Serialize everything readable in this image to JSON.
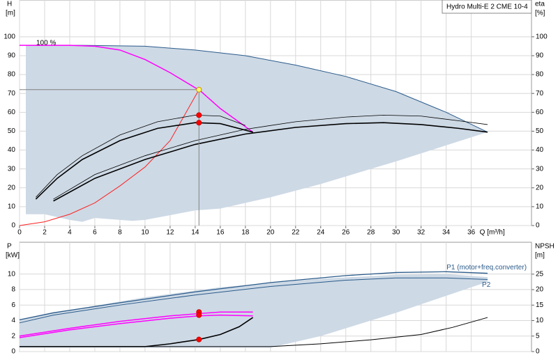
{
  "chart_data": [
    {
      "type": "line",
      "ylabel": "H",
      "yunit": "[m]",
      "y2label": "eta",
      "y2unit": "[%]",
      "xlabel": "Q [m³/h]",
      "annotations": [
        "100 %",
        "Hydro Multi-E 2 CME 10-4"
      ],
      "xlim": [
        0,
        40.8
      ],
      "xticks": [
        0,
        2,
        4,
        6,
        8,
        10,
        12,
        14,
        16,
        18,
        20,
        22,
        24,
        26,
        28,
        30,
        32,
        34,
        36
      ],
      "ylim": [
        0,
        119.5
      ],
      "yticks": [
        0,
        10,
        20,
        30,
        40,
        50,
        60,
        70,
        80,
        90,
        100
      ],
      "y2lim": [
        0,
        119.5
      ],
      "y2ticks": [
        0,
        10,
        20,
        30,
        40,
        50,
        60,
        70,
        80,
        90,
        100
      ],
      "grid": true,
      "series": [
        {
          "kind": "area",
          "color": "#cdd9e5",
          "x": [
            0.5,
            5,
            10,
            14,
            18,
            22,
            26,
            30,
            34,
            37.3,
            30,
            24,
            20,
            16,
            14,
            10,
            9,
            6,
            5,
            4,
            2,
            0.5
          ],
          "values": [
            95.5,
            95.5,
            95,
            93,
            90,
            85,
            79,
            71,
            60,
            49.5,
            34,
            22,
            15,
            9,
            8,
            3,
            2.5,
            4,
            2,
            3,
            6,
            6
          ]
        },
        {
          "kind": "line",
          "color": "#2a5a8a",
          "width": 1,
          "x": [
            0.5,
            5,
            10,
            14,
            18,
            22,
            26,
            30,
            34,
            37.3
          ],
          "values": [
            95.5,
            95.5,
            95,
            93,
            90,
            85,
            79,
            71,
            60,
            49.5
          ]
        },
        {
          "kind": "line",
          "color": "#ff00ff",
          "width": 1.5,
          "x": [
            0,
            4,
            6,
            8,
            10,
            12,
            14,
            14.3,
            16,
            18.6
          ],
          "values": [
            95.5,
            95.5,
            95,
            93,
            88,
            81,
            73,
            72,
            62,
            49.5
          ]
        },
        {
          "kind": "line",
          "color": "#ff2020",
          "width": 1,
          "x": [
            0,
            2,
            4,
            6,
            8,
            10,
            12,
            14.3
          ],
          "values": [
            0,
            2,
            6,
            12,
            21,
            31,
            45,
            72
          ]
        },
        {
          "kind": "line",
          "color": "#000000",
          "width": 0.8,
          "x": [
            1.3,
            3,
            5,
            8,
            11,
            14,
            16,
            18
          ],
          "values": [
            15,
            27,
            37,
            48,
            55,
            58.5,
            58,
            53
          ]
        },
        {
          "kind": "line",
          "color": "#000000",
          "width": 1.6,
          "x": [
            1.3,
            3,
            5,
            8,
            11,
            14,
            16,
            18.6
          ],
          "values": [
            14,
            25,
            35,
            45,
            51.5,
            54.5,
            54,
            49.5
          ]
        },
        {
          "kind": "line",
          "color": "#000000",
          "width": 0.8,
          "x": [
            2.7,
            6,
            10,
            14,
            18,
            22,
            26,
            29,
            32,
            35,
            37.3
          ],
          "values": [
            14,
            27,
            37,
            45,
            51,
            55,
            57.5,
            58.5,
            58,
            55.5,
            53.5
          ]
        },
        {
          "kind": "line",
          "color": "#000000",
          "width": 1.6,
          "x": [
            2.7,
            6,
            10,
            14,
            18,
            22,
            26,
            29,
            32,
            35,
            37.3
          ],
          "values": [
            13,
            25,
            35,
            43,
            48.5,
            52,
            54,
            54.5,
            53.5,
            51.5,
            49.5
          ]
        },
        {
          "kind": "line",
          "color": "#808080",
          "width": 1,
          "x": [
            0,
            14.3
          ],
          "values": [
            72,
            72
          ]
        },
        {
          "kind": "line",
          "color": "#808080",
          "width": 1,
          "x": [
            14.3,
            14.3
          ],
          "values": [
            72,
            0
          ]
        },
        {
          "kind": "point",
          "color": "#ffff66",
          "x": [
            14.3
          ],
          "values": [
            72
          ]
        },
        {
          "kind": "point",
          "color": "#ff0000",
          "x": [
            14.3,
            14.3
          ],
          "values": [
            58.5,
            54.5
          ]
        }
      ]
    },
    {
      "type": "line",
      "ylabel": "P",
      "yunit": "[kW]",
      "y2label": "NPSH",
      "y2unit": "[m]",
      "xlim": [
        0,
        40.8
      ],
      "ylim": [
        0,
        14.1
      ],
      "yticks": [
        0,
        2,
        4,
        6,
        8,
        10
      ],
      "y2lim": [
        0,
        35.3
      ],
      "y2ticks": [
        0,
        5,
        10,
        15,
        20,
        25
      ],
      "grid": true,
      "series": [
        {
          "kind": "area",
          "color": "#cdd9e5",
          "x": [
            0,
            2.7,
            10,
            16,
            24,
            30,
            34,
            37.3,
            37.3,
            30,
            24,
            20,
            5,
            0
          ],
          "values": [
            4.1,
            5,
            7,
            8.3,
            9.4,
            9.9,
            10,
            9.6,
            9,
            5,
            2,
            0.5,
            0.5,
            0.5
          ]
        },
        {
          "kind": "line",
          "name": "P1 (motor+freq.converter)",
          "color": "#2a5a8a",
          "width": 1.3,
          "x": [
            0,
            2.7,
            8,
            14,
            20,
            26,
            30,
            34,
            37.3
          ],
          "values": [
            4.1,
            5,
            6.3,
            7.7,
            8.9,
            9.8,
            10.2,
            10.3,
            10.1
          ]
        },
        {
          "kind": "line",
          "name": "P2",
          "color": "#2a5a8a",
          "width": 1,
          "x": [
            0,
            2.7,
            8,
            14,
            20,
            26,
            30,
            34,
            37.3
          ],
          "values": [
            3.7,
            4.7,
            6,
            7.3,
            8.4,
            9.2,
            9.5,
            9.5,
            9.3
          ]
        },
        {
          "kind": "line",
          "color": "#ff00ff",
          "width": 1.5,
          "x": [
            0,
            4,
            8,
            12,
            14.3,
            16,
            18.6
          ],
          "values": [
            2,
            3,
            3.9,
            4.6,
            4.9,
            5.1,
            5.1
          ]
        },
        {
          "kind": "line",
          "color": "#ff00ff",
          "width": 1.5,
          "x": [
            0,
            4,
            8,
            12,
            14.3,
            16,
            18.6
          ],
          "values": [
            1.8,
            2.8,
            3.6,
            4.3,
            4.6,
            4.7,
            4.6
          ]
        },
        {
          "kind": "line",
          "axis": "y2",
          "color": "#000000",
          "width": 1.6,
          "x": [
            0,
            10,
            12,
            14.3,
            16,
            17.5,
            18.6
          ],
          "values": [
            1.6,
            1.6,
            2.5,
            3.9,
            5.5,
            8,
            11
          ]
        },
        {
          "kind": "line",
          "axis": "y2",
          "color": "#000000",
          "width": 1,
          "x": [
            0,
            20,
            24,
            28,
            32,
            34.5,
            37.3
          ],
          "values": [
            1.6,
            1.6,
            2.5,
            3.8,
            5.5,
            7.8,
            11
          ]
        },
        {
          "kind": "point",
          "color": "#ff0000",
          "x": [
            14.3,
            14.3
          ],
          "values": [
            5.1,
            4.7
          ]
        },
        {
          "kind": "point",
          "axis": "y2",
          "color": "#ff0000",
          "x": [
            14.3
          ],
          "values": [
            3.9
          ]
        }
      ]
    }
  ]
}
